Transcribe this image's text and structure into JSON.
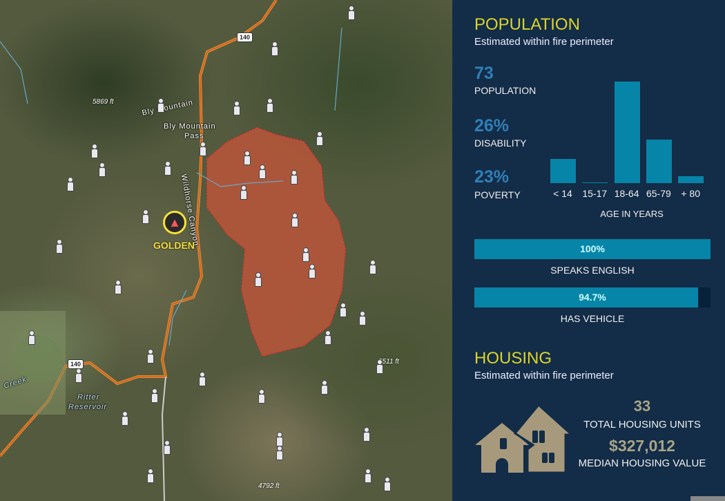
{
  "map": {
    "labels": {
      "peak1": "5869 ft",
      "bly_mountain": "Bly Mountain",
      "bly_pass_1": "Bly Mountain",
      "bly_pass_2": "Pass",
      "canyon": "Wildhorse Canyon",
      "fire_name": "GOLDEN",
      "creek": "Creek",
      "reservoir_1": "Ritter",
      "reservoir_2": "Reservoir",
      "peak2": "5511 ft",
      "peak3": "4792 ft",
      "highway_1": "140",
      "highway_2": "140"
    },
    "colors": {
      "fire_perimeter": "#d86a4c",
      "highway": "#e38a2a",
      "fire_icon": "#f5e13a"
    },
    "icons": [
      "person-icon",
      "fire-icon",
      "highway-shield-icon",
      "peak-icon"
    ]
  },
  "population": {
    "title": "POPULATION",
    "subtitle": "Estimated within fire perimeter",
    "stats": [
      {
        "value": "73",
        "label": "POPULATION"
      },
      {
        "value": "26%",
        "label": "DISABILITY"
      },
      {
        "value": "23%",
        "label": "POVERTY"
      }
    ],
    "speaks_english": {
      "value": "100%",
      "fraction": 1.0,
      "label": "SPEAKS ENGLISH"
    },
    "has_vehicle": {
      "value": "94.7%",
      "fraction": 0.947,
      "label": "HAS VEHICLE"
    }
  },
  "chart_data": {
    "type": "bar",
    "categories": [
      "< 14",
      "15-17",
      "18-64",
      "65-79",
      "+ 80"
    ],
    "values": [
      10,
      0,
      42,
      18,
      3
    ],
    "xlabel": "AGE IN YEARS",
    "ylabel": "",
    "color": "#0785a8"
  },
  "housing": {
    "title": "HOUSING",
    "subtitle": "Estimated within fire perimeter",
    "units": "33",
    "units_label": "TOTAL HOUSING UNITS",
    "value": "$327,012",
    "value_label": "MEDIAN HOUSING VALUE",
    "icon": "houses-icon",
    "icon_color": "#a79a7c"
  }
}
